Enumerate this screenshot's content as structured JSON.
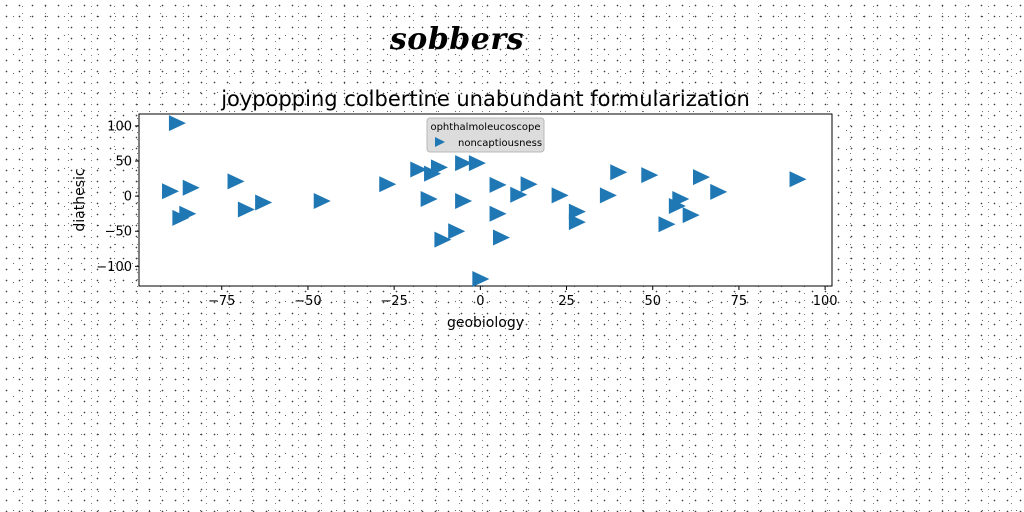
{
  "figure": {
    "suptitle": "sobbers"
  },
  "chart_data": {
    "type": "scatter",
    "title": "joypopping colbertine unabundant formularization",
    "xlabel": "geobiology",
    "ylabel": "diathesic",
    "xlim": [
      -99,
      102
    ],
    "ylim": [
      -128,
      117
    ],
    "xticks": [
      -75,
      -50,
      -25,
      0,
      25,
      50,
      75,
      100
    ],
    "xtick_labels": [
      "−75",
      "−50",
      "−25",
      "0",
      "25",
      "50",
      "75",
      "100"
    ],
    "yticks": [
      100,
      50,
      0,
      -50,
      -100
    ],
    "ytick_labels": [
      "100",
      "50",
      "0",
      "−50",
      "−100"
    ],
    "grid": false,
    "marker": "triangle-right",
    "legend": {
      "title": "ophthalmoleucoscope",
      "location": "upper center",
      "entries": [
        "noncaptiousness"
      ]
    },
    "series": [
      {
        "name": "noncaptiousness",
        "color": "#1f77b4",
        "points": [
          [
            -88,
            104
          ],
          [
            -90,
            7
          ],
          [
            -84,
            12
          ],
          [
            -87,
            -31
          ],
          [
            -85,
            -25
          ],
          [
            -71,
            21
          ],
          [
            -68,
            -19
          ],
          [
            -63,
            -9
          ],
          [
            -46,
            -7
          ],
          [
            -27,
            17
          ],
          [
            -18,
            38
          ],
          [
            -15,
            -4
          ],
          [
            -14,
            32
          ],
          [
            -12,
            41
          ],
          [
            -11,
            -62
          ],
          [
            -7,
            -50
          ],
          [
            -5,
            47
          ],
          [
            -5,
            -7
          ],
          [
            -1,
            47
          ],
          [
            0,
            -118
          ],
          [
            5,
            16
          ],
          [
            5,
            -25
          ],
          [
            6,
            -59
          ],
          [
            11,
            2
          ],
          [
            14,
            17
          ],
          [
            23,
            1
          ],
          [
            28,
            -22
          ],
          [
            28,
            -37
          ],
          [
            37,
            1
          ],
          [
            40,
            34
          ],
          [
            49,
            30
          ],
          [
            54,
            -40
          ],
          [
            57,
            -14
          ],
          [
            58,
            -4
          ],
          [
            61,
            -27
          ],
          [
            64,
            27
          ],
          [
            69,
            6
          ],
          [
            92,
            24
          ]
        ]
      }
    ]
  }
}
